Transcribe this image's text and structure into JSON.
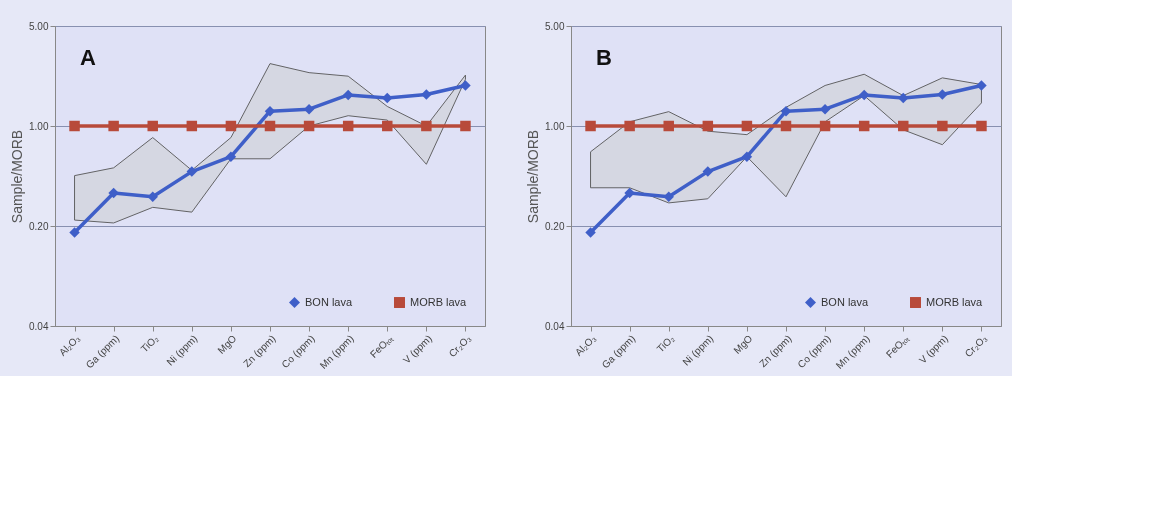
{
  "chart_data": [
    {
      "type": "line",
      "annotations": [
        "A"
      ],
      "ylabel": "Sample/MORB",
      "categories": [
        "Al₂O₃",
        "Ga (ppm)",
        "TiO₂",
        "Ni (ppm)",
        "MgO",
        "Zn (ppm)",
        "Co (ppm)",
        "Mn (ppm)",
        "FeOₜₒₜ",
        "V (ppm)",
        "Cr₂O₃"
      ],
      "series": [
        {
          "name": "BON lava",
          "color": "#3f5fc8",
          "marker": "diamond",
          "values": [
            0.18,
            0.34,
            0.32,
            0.48,
            0.61,
            1.27,
            1.31,
            1.65,
            1.57,
            1.66,
            1.92
          ],
          "lower": [
            0.22,
            0.21,
            0.27,
            0.25,
            0.59,
            0.59,
            1.0,
            1.18,
            1.1,
            0.54,
            2.12
          ],
          "upper": [
            0.45,
            0.51,
            0.83,
            0.49,
            0.83,
            2.73,
            2.36,
            2.23,
            1.37,
            1.0,
            2.27
          ]
        },
        {
          "name": "MORB lava",
          "color": "#b84a3a",
          "marker": "square",
          "values": [
            1.0,
            1.0,
            1.0,
            1.0,
            1.0,
            1.0,
            1.0,
            1.0,
            1.0,
            1.0,
            1.0
          ]
        }
      ],
      "log": "y",
      "ylim": [
        0.04,
        5
      ],
      "yticks": [
        0.04,
        {
          "value": 0.2,
          "label": "0.20"
        },
        {
          "value": 1,
          "label": "1.00"
        },
        {
          "value": 5,
          "label": "5.00"
        }
      ],
      "grid": "y",
      "legend": "bottom right"
    },
    {
      "type": "line",
      "annotations": [
        "B"
      ],
      "ylabel": "Sample/MORB",
      "categories": [
        "Al₂O₃",
        "Ga (ppm)",
        "TiO₂",
        "Ni (ppm)",
        "MgO",
        "Zn (ppm)",
        "Co (ppm)",
        "Mn (ppm)",
        "FeOₜₒₜ",
        "V (ppm)",
        "Cr₂O₃"
      ],
      "series": [
        {
          "name": "BON lava",
          "color": "#3f5fc8",
          "marker": "diamond",
          "values": [
            0.18,
            0.34,
            0.32,
            0.48,
            0.61,
            1.27,
            1.31,
            1.65,
            1.57,
            1.66,
            1.92
          ],
          "lower": [
            0.37,
            0.37,
            0.29,
            0.31,
            0.61,
            0.32,
            1.07,
            1.63,
            0.94,
            0.74,
            1.45
          ],
          "upper": [
            0.66,
            1.07,
            1.26,
            0.92,
            0.87,
            1.35,
            1.92,
            2.3,
            1.63,
            2.17,
            1.95
          ]
        },
        {
          "name": "MORB lava",
          "color": "#b84a3a",
          "marker": "square",
          "values": [
            1.0,
            1.0,
            1.0,
            1.0,
            1.0,
            1.0,
            1.0,
            1.0,
            1.0,
            1.0,
            1.0
          ]
        }
      ],
      "log": "y",
      "ylim": [
        0.04,
        5
      ],
      "yticks": [
        0.04,
        {
          "value": 0.2,
          "label": "0.20"
        },
        {
          "value": 1,
          "label": "1.00"
        },
        {
          "value": 5,
          "label": "5.00"
        }
      ],
      "grid": "y",
      "legend": "bottom right"
    }
  ]
}
